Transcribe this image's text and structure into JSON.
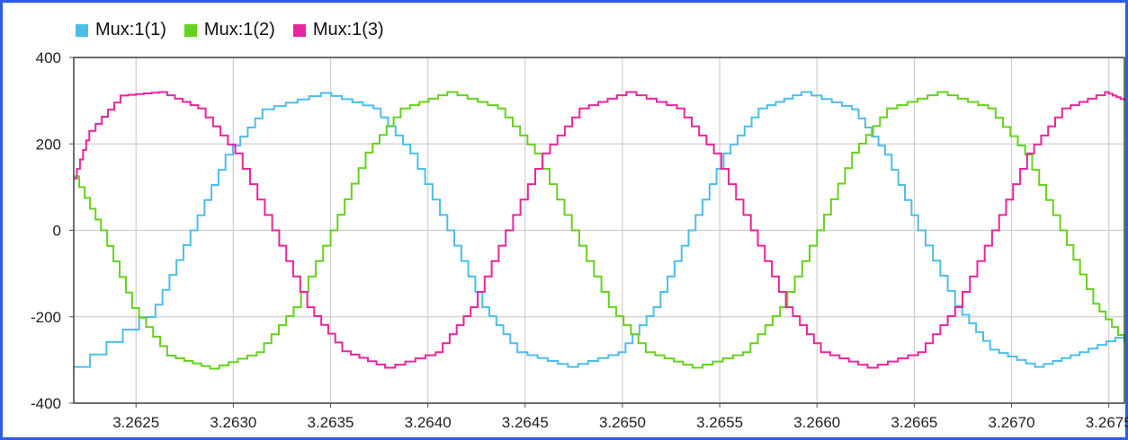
{
  "chart_data": {
    "type": "line",
    "title": "",
    "xlabel": "",
    "ylabel": "",
    "xlim": [
      3.26218,
      3.26758
    ],
    "ylim": [
      -400,
      400
    ],
    "grid": true,
    "legend_position": "top-left",
    "x_ticks": [
      3.2625,
      3.263,
      3.2635,
      3.264,
      3.2645,
      3.265,
      3.2655,
      3.266,
      3.2665,
      3.267,
      3.2675
    ],
    "x_tick_labels": [
      "3.2625",
      "3.2630",
      "3.2635",
      "3.2640",
      "3.2645",
      "3.2650",
      "3.2655",
      "3.2660",
      "3.2665",
      "3.2670",
      "3.2675"
    ],
    "y_ticks": [
      400,
      200,
      0,
      -200,
      -400
    ],
    "y_tick_labels": [
      "400",
      "200",
      "0",
      "-200",
      "-400"
    ],
    "series": [
      {
        "name": "Mux:1(1)",
        "color": "#4dbde9",
        "points": [
          [
            3.26218,
            -316
          ],
          [
            3.2626,
            -172
          ],
          [
            3.26278,
            0
          ],
          [
            3.26296,
            175
          ],
          [
            3.26315,
            280
          ],
          [
            3.26345,
            318
          ],
          [
            3.26372,
            282
          ],
          [
            3.26391,
            178
          ],
          [
            3.2641,
            0
          ],
          [
            3.26428,
            -178
          ],
          [
            3.26446,
            -282
          ],
          [
            3.26472,
            -316
          ],
          [
            3.26498,
            -282
          ],
          [
            3.26516,
            -178
          ],
          [
            3.26534,
            0
          ],
          [
            3.26552,
            178
          ],
          [
            3.2657,
            282
          ],
          [
            3.26592,
            320
          ],
          [
            3.26618,
            280
          ],
          [
            3.26635,
            175
          ],
          [
            3.26652,
            0
          ],
          [
            3.26671,
            -175
          ],
          [
            3.26689,
            -276
          ],
          [
            3.26712,
            -316
          ],
          [
            3.26735,
            -282
          ],
          [
            3.26758,
            -240
          ]
        ]
      },
      {
        "name": "Mux:1(2)",
        "color": "#66d11e",
        "points": [
          [
            3.26218,
            125
          ],
          [
            3.26232,
            0
          ],
          [
            3.26248,
            -180
          ],
          [
            3.26266,
            -290
          ],
          [
            3.26288,
            -320
          ],
          [
            3.26312,
            -282
          ],
          [
            3.26331,
            -178
          ],
          [
            3.2635,
            0
          ],
          [
            3.26368,
            180
          ],
          [
            3.26386,
            282
          ],
          [
            3.2641,
            320
          ],
          [
            3.26436,
            282
          ],
          [
            3.26455,
            178
          ],
          [
            3.26474,
            0
          ],
          [
            3.26493,
            -178
          ],
          [
            3.26512,
            -282
          ],
          [
            3.26536,
            -318
          ],
          [
            3.26562,
            -282
          ],
          [
            3.26581,
            -178
          ],
          [
            3.266,
            0
          ],
          [
            3.26618,
            180
          ],
          [
            3.26636,
            282
          ],
          [
            3.26662,
            320
          ],
          [
            3.26688,
            282
          ],
          [
            3.26707,
            175
          ],
          [
            3.26725,
            0
          ],
          [
            3.26742,
            -170
          ],
          [
            3.26758,
            -260
          ]
        ]
      },
      {
        "name": "Mux:1(3)",
        "color": "#e8259e",
        "points": [
          [
            3.26218,
            120
          ],
          [
            3.26226,
            230
          ],
          [
            3.26242,
            312
          ],
          [
            3.26262,
            320
          ],
          [
            3.26282,
            282
          ],
          [
            3.26301,
            178
          ],
          [
            3.2632,
            0
          ],
          [
            3.26338,
            -178
          ],
          [
            3.26356,
            -280
          ],
          [
            3.26378,
            -318
          ],
          [
            3.26404,
            -282
          ],
          [
            3.26422,
            -178
          ],
          [
            3.2644,
            0
          ],
          [
            3.26459,
            178
          ],
          [
            3.26478,
            282
          ],
          [
            3.26502,
            320
          ],
          [
            3.26528,
            282
          ],
          [
            3.26547,
            178
          ],
          [
            3.26566,
            0
          ],
          [
            3.26584,
            -178
          ],
          [
            3.26602,
            -282
          ],
          [
            3.26626,
            -318
          ],
          [
            3.26652,
            -282
          ],
          [
            3.26671,
            -178
          ],
          [
            3.2669,
            0
          ],
          [
            3.26708,
            178
          ],
          [
            3.26726,
            282
          ],
          [
            3.26748,
            320
          ],
          [
            3.26758,
            300
          ]
        ]
      }
    ]
  }
}
